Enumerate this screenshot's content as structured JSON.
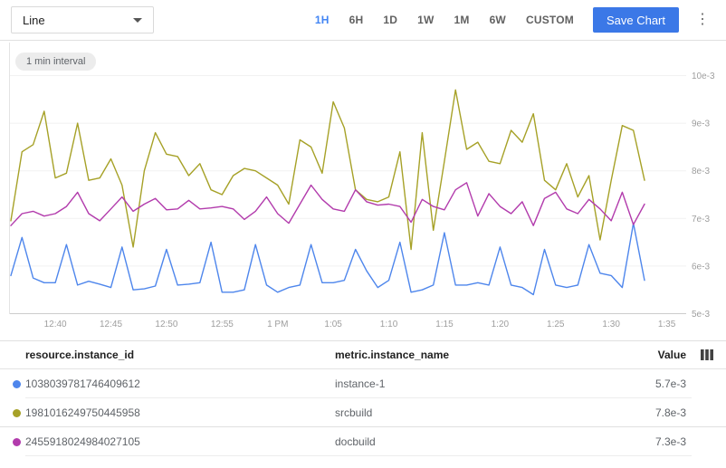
{
  "toolbar": {
    "chart_type": "Line",
    "ranges": [
      {
        "label": "1H",
        "active": true
      },
      {
        "label": "6H",
        "active": false
      },
      {
        "label": "1D",
        "active": false
      },
      {
        "label": "1W",
        "active": false
      },
      {
        "label": "1M",
        "active": false
      },
      {
        "label": "6W",
        "active": false
      },
      {
        "label": "CUSTOM",
        "active": false
      }
    ],
    "save_label": "Save Chart",
    "menu_icon": "kebab-menu-icon",
    "accent_color": "#4285f4"
  },
  "chart": {
    "interval_label": "1 min interval"
  },
  "chart_data": {
    "type": "line",
    "title": "",
    "xlabel": "",
    "ylabel": "",
    "grid": true,
    "legend_position": "table-below",
    "y_axis": {
      "side": "right",
      "min_e3": 5,
      "max_e3": 10,
      "tick_labels": [
        "10e-3",
        "9e-3",
        "8e-3",
        "7e-3",
        "6e-3",
        "5e-3"
      ],
      "tick_values_e3": [
        10,
        9,
        8,
        7,
        6,
        5
      ]
    },
    "x_axis": {
      "start": "12:36",
      "end": "1:33",
      "interval": "1 min",
      "tick_labels": [
        "12:40",
        "12:45",
        "12:50",
        "12:55",
        "1 PM",
        "1:05",
        "1:10",
        "1:15",
        "1:20",
        "1:25",
        "1:30",
        "1:35"
      ]
    },
    "values_unit": "e-3",
    "series": [
      {
        "name": "instance-1",
        "instance_id": "1038039781746409612",
        "color": "#4e86ec",
        "values_e3": [
          5.8,
          6.6,
          5.75,
          5.65,
          5.65,
          6.45,
          5.6,
          5.68,
          5.62,
          5.55,
          6.4,
          5.5,
          5.52,
          5.58,
          6.35,
          5.6,
          5.62,
          5.65,
          6.5,
          5.45,
          5.45,
          5.5,
          6.45,
          5.6,
          5.45,
          5.55,
          5.6,
          6.45,
          5.65,
          5.65,
          5.7,
          6.35,
          5.9,
          5.55,
          5.7,
          6.5,
          5.45,
          5.5,
          5.6,
          6.7,
          5.6,
          5.6,
          5.65,
          5.6,
          6.4,
          5.6,
          5.55,
          5.4,
          6.35,
          5.6,
          5.55,
          5.6,
          6.45,
          5.85,
          5.8,
          5.55,
          6.9,
          5.7
        ]
      },
      {
        "name": "srcbuild",
        "instance_id": "1981016249750445958",
        "color": "#a6a127",
        "values_e3": [
          6.95,
          8.4,
          8.55,
          9.25,
          7.85,
          7.95,
          9.0,
          7.8,
          7.85,
          8.25,
          7.7,
          6.4,
          8.0,
          8.8,
          8.35,
          8.3,
          7.9,
          8.15,
          7.6,
          7.5,
          7.9,
          8.05,
          8.0,
          7.85,
          7.7,
          7.3,
          8.65,
          8.5,
          7.95,
          9.45,
          8.9,
          7.6,
          7.4,
          7.35,
          7.45,
          8.4,
          6.35,
          8.8,
          6.75,
          8.2,
          9.7,
          8.45,
          8.6,
          8.2,
          8.15,
          8.85,
          8.6,
          9.2,
          7.8,
          7.6,
          8.15,
          7.45,
          7.9,
          6.55,
          7.8,
          8.95,
          8.85,
          7.8
        ]
      },
      {
        "name": "docbuild",
        "instance_id": "2455918024984027105",
        "color": "#b23bac",
        "values_e3": [
          6.85,
          7.1,
          7.15,
          7.05,
          7.1,
          7.25,
          7.55,
          7.1,
          6.95,
          7.2,
          7.45,
          7.15,
          7.3,
          7.42,
          7.18,
          7.2,
          7.38,
          7.2,
          7.22,
          7.25,
          7.2,
          6.98,
          7.15,
          7.45,
          7.1,
          6.9,
          7.3,
          7.7,
          7.4,
          7.2,
          7.15,
          7.6,
          7.35,
          7.28,
          7.3,
          7.25,
          6.92,
          7.4,
          7.25,
          7.18,
          7.6,
          7.75,
          7.05,
          7.52,
          7.25,
          7.1,
          7.35,
          6.85,
          7.42,
          7.55,
          7.2,
          7.1,
          7.4,
          7.2,
          6.95,
          7.55,
          6.87,
          7.3
        ]
      }
    ]
  },
  "table": {
    "headers": [
      "resource.instance_id",
      "metric.instance_name",
      "Value"
    ],
    "column_icon": "view-column-icon",
    "rows": [
      {
        "instance_id": "1038039781746409612",
        "instance_name": "instance-1",
        "value": "5.7e-3",
        "color": "#4e86ec"
      },
      {
        "instance_id": "1981016249750445958",
        "instance_name": "srcbuild",
        "value": "7.8e-3",
        "color": "#a6a127"
      },
      {
        "instance_id": "2455918024984027105",
        "instance_name": "docbuild",
        "value": "7.3e-3",
        "color": "#b23bac"
      }
    ]
  }
}
